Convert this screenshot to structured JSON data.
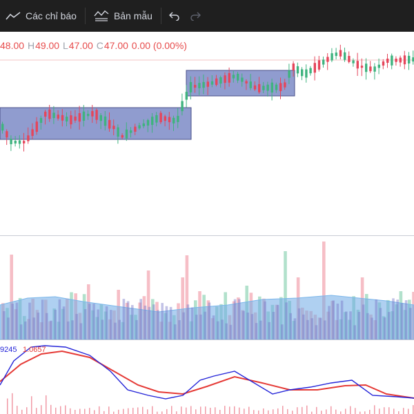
{
  "toolbar": {
    "indicators_label": "Các chỉ báo",
    "templates_label": "Bản mẫu",
    "colors": {
      "bg": "#1f1f1f",
      "text": "#d1d4dc",
      "disabled": "#5d606b"
    }
  },
  "legend": {
    "open_value": "48.00",
    "high_key": "H",
    "high_value": "49.00",
    "low_key": "L",
    "low_value": "47.00",
    "close_key": "C",
    "close_value": "47.00",
    "change_value": "0.00 (0.00%)",
    "color": "#e74c4c"
  },
  "macd": {
    "macd_value": "9245",
    "signal_value": "1.0657",
    "macd_color": "#2323d8",
    "signal_color": "#e53935"
  },
  "colors": {
    "up": "#3fb37f",
    "down": "#e5465b",
    "box_fill": "rgba(70,90,175,0.6)",
    "box_stroke": "#4a4f8a",
    "volume_ma_fill": "rgba(110,170,230,0.55)",
    "pane_divider": "#c8cbd4"
  }
}
